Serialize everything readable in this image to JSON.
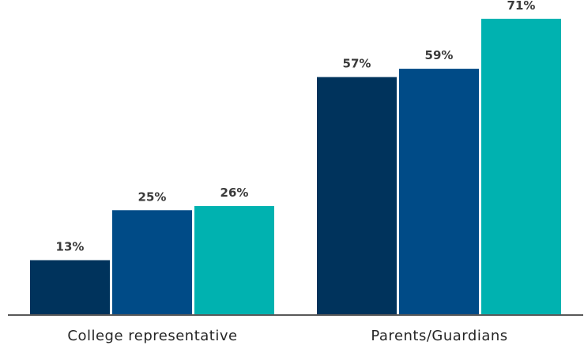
{
  "chart_data": {
    "type": "bar",
    "categories": [
      "College representative",
      "Parents/Guardians"
    ],
    "series": [
      {
        "values": [
          13,
          57
        ],
        "color": "#00335C"
      },
      {
        "values": [
          25,
          59
        ],
        "color": "#004B87"
      },
      {
        "values": [
          26,
          71
        ],
        "color": "#00B2B0"
      }
    ],
    "value_suffix": "%",
    "ylim": [
      0,
      75
    ],
    "grid": false,
    "legend": "none",
    "title": "",
    "xlabel": "",
    "ylabel": "",
    "axis_color": "#595959"
  }
}
